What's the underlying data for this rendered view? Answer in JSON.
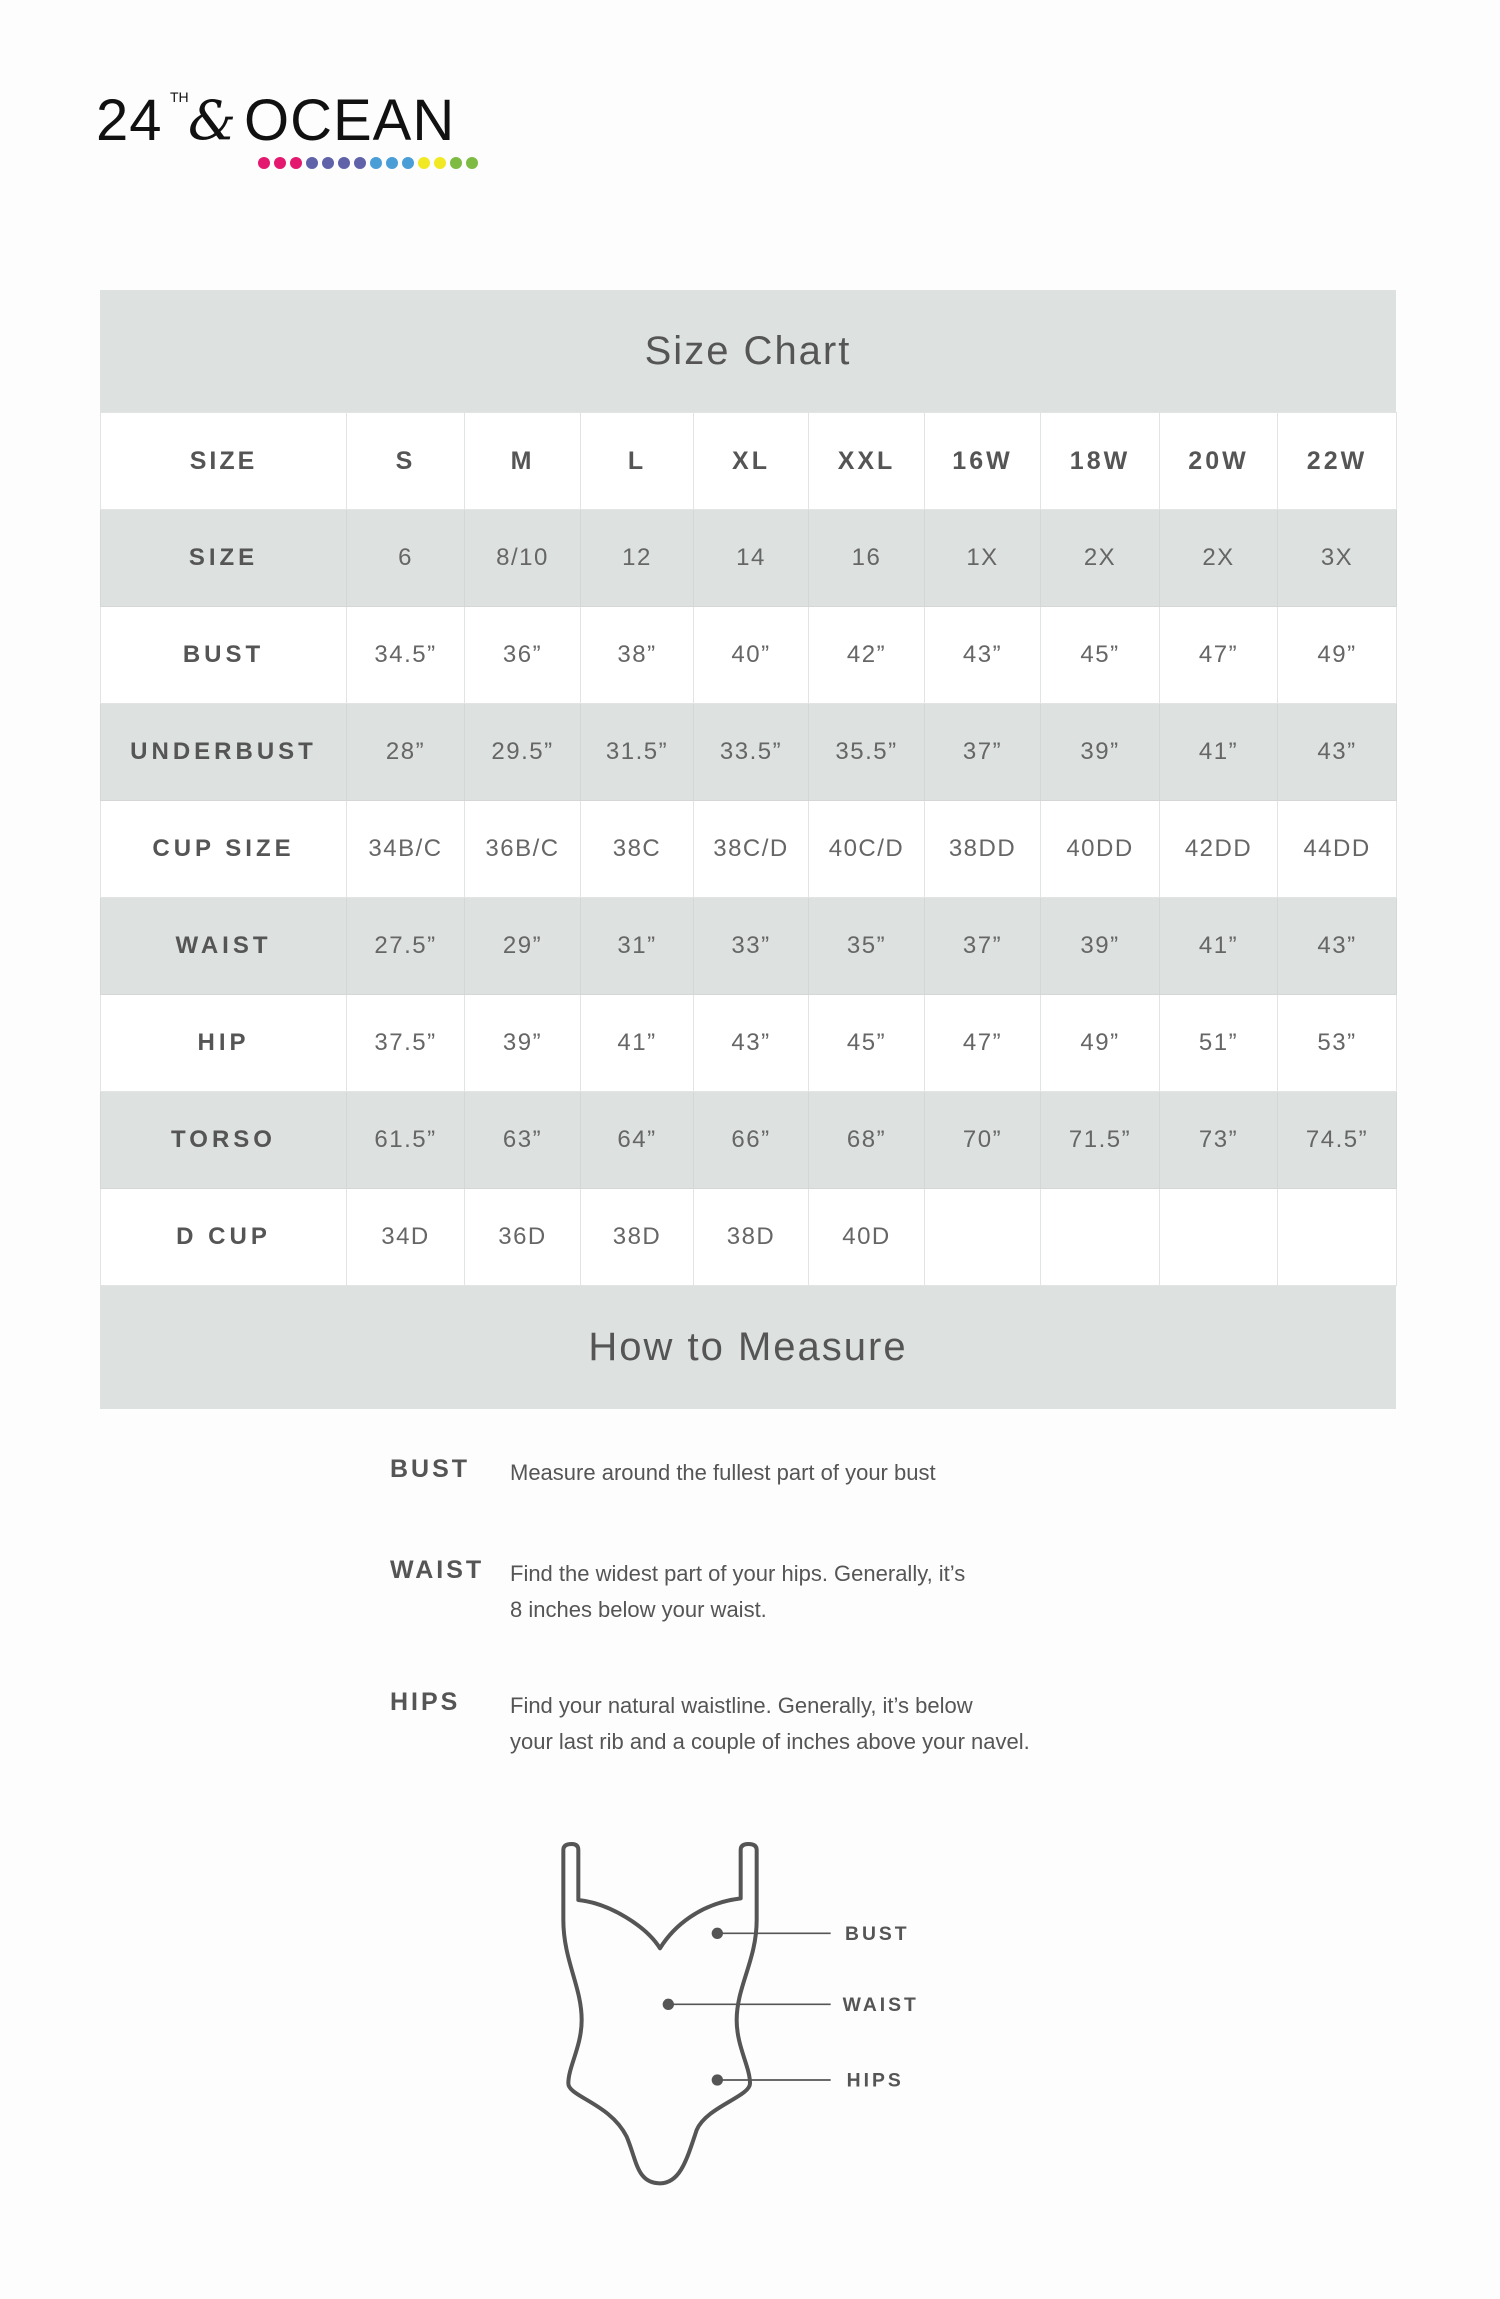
{
  "logo": {
    "number": "24",
    "superscript": "TH",
    "ampersand": "&",
    "word": "OCEAN",
    "dot_colors": [
      "#e5186f",
      "#e5186f",
      "#e5186f",
      "#5f62a8",
      "#5f62a8",
      "#5f62a8",
      "#5f62a8",
      "#4a9ed8",
      "#4a9ed8",
      "#4a9ed8",
      "#f2e925",
      "#f2e925",
      "#7dbb42",
      "#7dbb42"
    ]
  },
  "size_chart": {
    "title": "Size Chart",
    "columns": [
      "SIZE",
      "S",
      "M",
      "L",
      "XL",
      "XXL",
      "16W",
      "18W",
      "20W",
      "22W"
    ],
    "rows": [
      {
        "label": "SIZE",
        "values": [
          "6",
          "8/10",
          "12",
          "14",
          "16",
          "1X",
          "2X",
          "2X",
          "3X"
        ]
      },
      {
        "label": "BUST",
        "values": [
          "34.5”",
          "36”",
          "38”",
          "40”",
          "42”",
          "43”",
          "45”",
          "47”",
          "49”"
        ]
      },
      {
        "label": "UNDERBUST",
        "values": [
          "28”",
          "29.5”",
          "31.5”",
          "33.5”",
          "35.5”",
          "37”",
          "39”",
          "41”",
          "43”"
        ]
      },
      {
        "label": "CUP SIZE",
        "values": [
          "34B/C",
          "36B/C",
          "38C",
          "38C/D",
          "40C/D",
          "38DD",
          "40DD",
          "42DD",
          "44DD"
        ]
      },
      {
        "label": "WAIST",
        "values": [
          "27.5”",
          "29”",
          "31”",
          "33”",
          "35”",
          "37”",
          "39”",
          "41”",
          "43”"
        ]
      },
      {
        "label": "HIP",
        "values": [
          "37.5”",
          "39”",
          "41”",
          "43”",
          "45”",
          "47”",
          "49”",
          "51”",
          "53”"
        ]
      },
      {
        "label": "TORSO",
        "values": [
          "61.5”",
          "63”",
          "64”",
          "66”",
          "68”",
          "70”",
          "71.5”",
          "73”",
          "74.5”"
        ]
      },
      {
        "label": "D CUP",
        "values": [
          "34D",
          "36D",
          "38D",
          "38D",
          "40D",
          "",
          "",
          "",
          ""
        ]
      }
    ]
  },
  "how_to_measure": {
    "title": "How to Measure",
    "items": [
      {
        "label": "BUST",
        "lines": [
          "Measure around the fullest part of your bust"
        ]
      },
      {
        "label": "WAIST",
        "lines": [
          "Find the widest part of your hips. Generally, it’s",
          "8 inches below your waist."
        ]
      },
      {
        "label": "HIPS",
        "lines": [
          "Find your natural waistline. Generally, it’s below",
          "your last rib and a couple of inches above your navel."
        ]
      }
    ],
    "diagram_labels": [
      "BUST",
      "WAIST",
      "HIPS"
    ],
    "line_color": "#555555"
  }
}
